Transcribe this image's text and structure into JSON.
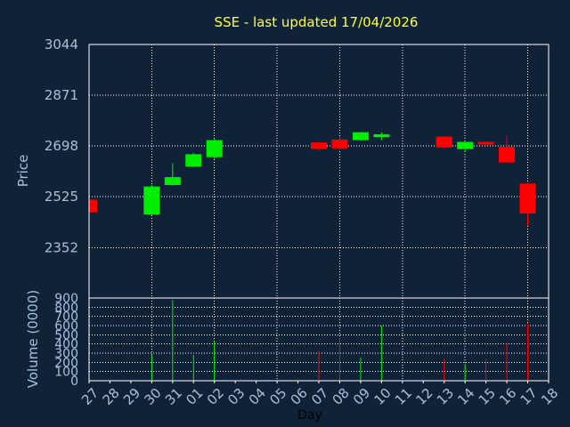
{
  "chart_data": {
    "type": "candlestick",
    "title": "SSE - last updated 17/04/2026",
    "colors": {
      "up": "#00ee00",
      "down": "#ff0000",
      "background": "#0f2238",
      "axis": "#ffffff",
      "title": "#ffff33",
      "text": "#a8c0dc"
    },
    "price_panel": {
      "ylabel": "Price",
      "ylim": [
        2180,
        3044
      ],
      "yticks": [
        3044,
        2871,
        2698,
        2525,
        2352
      ],
      "grid": true
    },
    "volume_panel": {
      "ylabel": "Volume (0000)",
      "ylim": [
        0,
        900
      ],
      "yticks": [
        900,
        800,
        700,
        600,
        500,
        400,
        300,
        200,
        100,
        0
      ],
      "grid": true
    },
    "xlabel": "Day",
    "x_ticks": [
      "27",
      "28",
      "29",
      "30",
      "31",
      "01",
      "02",
      "03",
      "04",
      "05",
      "06",
      "07",
      "08",
      "09",
      "10",
      "11",
      "12",
      "13",
      "14",
      "15",
      "16",
      "17",
      "18"
    ],
    "candles": [
      {
        "day": "27",
        "open": 2515,
        "high": 2518,
        "low": 2468,
        "close": 2472,
        "volume": 0
      },
      {
        "day": "30",
        "open": 2465,
        "high": 2565,
        "low": 2462,
        "close": 2560,
        "volume": 280
      },
      {
        "day": "31",
        "open": 2565,
        "high": 2640,
        "low": 2563,
        "close": 2592,
        "volume": 880
      },
      {
        "day": "01",
        "open": 2628,
        "high": 2675,
        "low": 2625,
        "close": 2670,
        "volume": 280
      },
      {
        "day": "02",
        "open": 2660,
        "high": 2722,
        "low": 2655,
        "close": 2718,
        "volume": 430
      },
      {
        "day": "07",
        "open": 2710,
        "high": 2712,
        "low": 2682,
        "close": 2688,
        "volume": 330
      },
      {
        "day": "08",
        "open": 2720,
        "high": 2730,
        "low": 2683,
        "close": 2690,
        "volume": 470
      },
      {
        "day": "09",
        "open": 2718,
        "high": 2746,
        "low": 2716,
        "close": 2745,
        "volume": 250
      },
      {
        "day": "10",
        "open": 2728,
        "high": 2745,
        "low": 2717,
        "close": 2738,
        "volume": 600
      },
      {
        "day": "13",
        "open": 2730,
        "high": 2732,
        "low": 2690,
        "close": 2693,
        "volume": 240
      },
      {
        "day": "14",
        "open": 2688,
        "high": 2712,
        "low": 2678,
        "close": 2712,
        "volume": 180
      },
      {
        "day": "15",
        "open": 2712,
        "high": 2714,
        "low": 2700,
        "close": 2703,
        "volume": 240
      },
      {
        "day": "16",
        "open": 2695,
        "high": 2733,
        "low": 2640,
        "close": 2642,
        "volume": 410
      },
      {
        "day": "17",
        "open": 2570,
        "high": 2572,
        "low": 2425,
        "close": 2468,
        "volume": 630
      }
    ]
  }
}
